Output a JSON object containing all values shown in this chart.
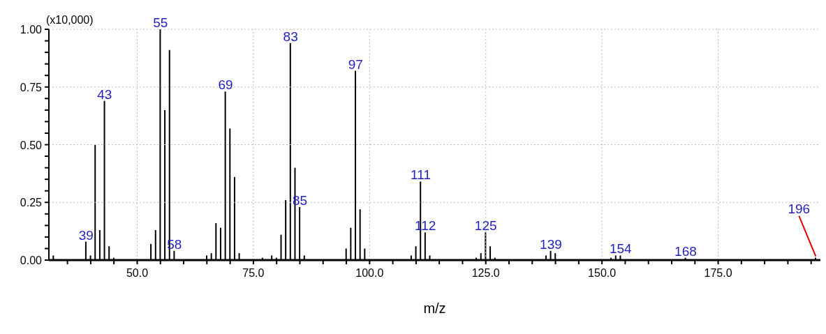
{
  "chart_data": {
    "type": "bar",
    "xlabel": "m/z",
    "ylabel": "(x10,000)",
    "x": [
      32,
      39,
      40,
      41,
      42,
      43,
      44,
      45,
      53,
      54,
      55,
      56,
      57,
      58,
      65,
      66,
      67,
      68,
      69,
      70,
      71,
      72,
      77,
      79,
      80,
      81,
      82,
      83,
      84,
      85,
      86,
      95,
      96,
      97,
      98,
      99,
      109,
      110,
      111,
      112,
      113,
      123,
      124,
      125,
      126,
      127,
      138,
      139,
      140,
      152,
      153,
      154,
      168,
      196
    ],
    "series": [
      {
        "color": "#000000",
        "values": [
          0.02,
          0.08,
          0.02,
          0.5,
          0.13,
          0.69,
          0.06,
          0.01,
          0.07,
          0.13,
          1.0,
          0.65,
          0.91,
          0.04,
          0.02,
          0.03,
          0.16,
          0.14,
          0.73,
          0.57,
          0.36,
          0.03,
          0.01,
          0.02,
          0.01,
          0.11,
          0.26,
          0.94,
          0.4,
          0.23,
          0.02,
          0.05,
          0.14,
          0.82,
          0.22,
          0.05,
          0.02,
          0.06,
          0.34,
          0.12,
          0.02,
          0.01,
          0.03,
          0.12,
          0.06,
          0.01,
          0.02,
          0.04,
          0.03,
          0.01,
          0.02,
          0.02,
          0.01,
          0.01
        ]
      }
    ],
    "xlim": [
      31,
      197
    ],
    "xticks": [
      {
        "value": 35,
        "label": null
      },
      {
        "value": 40,
        "label": null
      },
      {
        "value": 45,
        "label": null
      },
      {
        "value": 50,
        "label": "50.0"
      },
      {
        "value": 55,
        "label": null
      },
      {
        "value": 60,
        "label": null
      },
      {
        "value": 65,
        "label": null
      },
      {
        "value": 70,
        "label": null
      },
      {
        "value": 75,
        "label": "75.0"
      },
      {
        "value": 80,
        "label": null
      },
      {
        "value": 85,
        "label": null
      },
      {
        "value": 90,
        "label": null
      },
      {
        "value": 95,
        "label": null
      },
      {
        "value": 100,
        "label": "100.0"
      },
      {
        "value": 105,
        "label": null
      },
      {
        "value": 110,
        "label": null
      },
      {
        "value": 115,
        "label": null
      },
      {
        "value": 120,
        "label": null
      },
      {
        "value": 125,
        "label": "125.0"
      },
      {
        "value": 130,
        "label": null
      },
      {
        "value": 135,
        "label": null
      },
      {
        "value": 140,
        "label": null
      },
      {
        "value": 145,
        "label": null
      },
      {
        "value": 150,
        "label": "150.0"
      },
      {
        "value": 155,
        "label": null
      },
      {
        "value": 160,
        "label": null
      },
      {
        "value": 165,
        "label": null
      },
      {
        "value": 170,
        "label": null
      },
      {
        "value": 175,
        "label": "175.0"
      },
      {
        "value": 180,
        "label": null
      },
      {
        "value": 185,
        "label": null
      },
      {
        "value": 190,
        "label": null
      },
      {
        "value": 195,
        "label": null
      }
    ],
    "ylim": [
      0,
      1
    ],
    "yticks": [
      {
        "value": 0,
        "label": "0.00"
      },
      {
        "value": 0.05,
        "label": null
      },
      {
        "value": 0.1,
        "label": null
      },
      {
        "value": 0.15,
        "label": null
      },
      {
        "value": 0.2,
        "label": null
      },
      {
        "value": 0.25,
        "label": "0.25"
      },
      {
        "value": 0.3,
        "label": null
      },
      {
        "value": 0.35,
        "label": null
      },
      {
        "value": 0.4,
        "label": null
      },
      {
        "value": 0.45,
        "label": null
      },
      {
        "value": 0.5,
        "label": "0.50"
      },
      {
        "value": 0.55,
        "label": null
      },
      {
        "value": 0.6,
        "label": null
      },
      {
        "value": 0.65,
        "label": null
      },
      {
        "value": 0.7,
        "label": null
      },
      {
        "value": 0.75,
        "label": "0.75"
      },
      {
        "value": 0.8,
        "label": null
      },
      {
        "value": 0.85,
        "label": null
      },
      {
        "value": 0.9,
        "label": null
      },
      {
        "value": 0.95,
        "label": null
      },
      {
        "value": 1,
        "label": "1.00"
      }
    ],
    "grid": true,
    "annotations": [
      {
        "text": "39",
        "x": 39,
        "y": 0.08
      },
      {
        "text": "43",
        "x": 43,
        "y": 0.69
      },
      {
        "text": "55",
        "x": 55,
        "y": 1.0
      },
      {
        "text": "58",
        "x": 58,
        "y": 0.04
      },
      {
        "text": "69",
        "x": 69,
        "y": 0.73
      },
      {
        "text": "83",
        "x": 83,
        "y": 0.94
      },
      {
        "text": "85",
        "x": 85,
        "y": 0.23
      },
      {
        "text": "97",
        "x": 97,
        "y": 0.82
      },
      {
        "text": "111",
        "x": 111,
        "y": 0.34
      },
      {
        "text": "112",
        "x": 112,
        "y": 0.12
      },
      {
        "text": "125",
        "x": 125,
        "y": 0.12
      },
      {
        "text": "139",
        "x": 139,
        "y": 0.04
      },
      {
        "text": "154",
        "x": 154,
        "y": 0.02
      },
      {
        "text": "168",
        "x": 168,
        "y": 0.01
      },
      {
        "text": "196",
        "x": 196,
        "y": 0.01
      }
    ]
  }
}
